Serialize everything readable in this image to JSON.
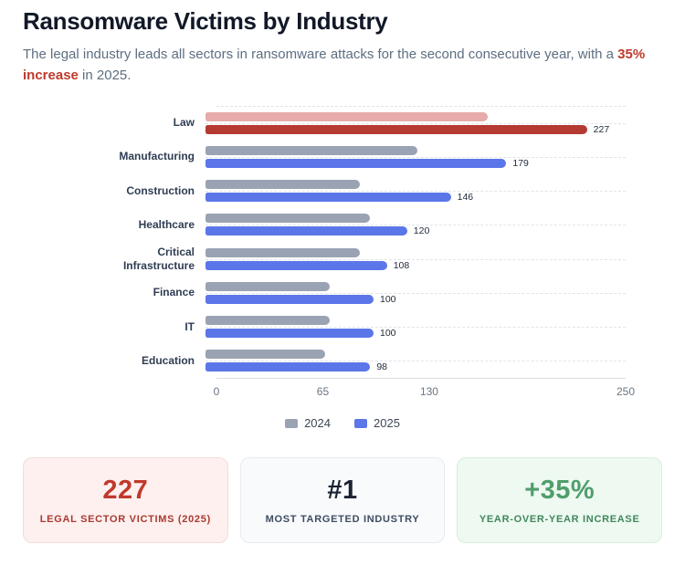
{
  "header": {
    "title": "Ransomware Victims by Industry",
    "subtitle_before": "The legal industry leads all sectors in ransomware attacks for the second consecutive year, with a ",
    "subtitle_highlight": "35% increase",
    "subtitle_after": " in 2025."
  },
  "chart_data": {
    "type": "bar",
    "orientation": "horizontal",
    "title": "",
    "xlabel": "",
    "ylabel": "",
    "xlim": [
      0,
      250
    ],
    "xticks": [
      0,
      65,
      130,
      250
    ],
    "grid": "dashed-horizontal",
    "legend_position": "bottom",
    "categories": [
      "Law",
      "Manufacturing",
      "Construction",
      "Healthcare",
      "Critical Infrastructure",
      "Finance",
      "IT",
      "Education"
    ],
    "highlight_category": "Law",
    "series": [
      {
        "name": "2024",
        "values": [
          168,
          126,
          92,
          98,
          92,
          74,
          74,
          71
        ],
        "color": "#9aa3b3",
        "highlight_color": "#e6abaa",
        "labeled": false
      },
      {
        "name": "2025",
        "values": [
          227,
          179,
          146,
          120,
          108,
          100,
          100,
          98
        ],
        "color": "#5b76e8",
        "highlight_color": "#b53a31",
        "labeled": true
      }
    ]
  },
  "legend": [
    {
      "label": "2024",
      "color": "#9aa3b3"
    },
    {
      "label": "2025",
      "color": "#5b76e8"
    }
  ],
  "stats": [
    {
      "value": "227",
      "label": "LEGAL SECTOR VICTIMS (2025)",
      "bg": "#fdf0ef",
      "border": "#f4dcda",
      "value_color": "#c0392b",
      "label_color": "#a93a31"
    },
    {
      "value": "#1",
      "label": "MOST TARGETED INDUSTRY",
      "bg": "#f8fafc",
      "border": "#e7ecf1",
      "value_color": "#1b2232",
      "label_color": "#3f4c61"
    },
    {
      "value": "+35%",
      "label": "YEAR-OVER-YEAR INCREASE",
      "bg": "#edf9f1",
      "border": "#d8eee0",
      "value_color": "#4f9e6b",
      "label_color": "#42875c"
    }
  ]
}
